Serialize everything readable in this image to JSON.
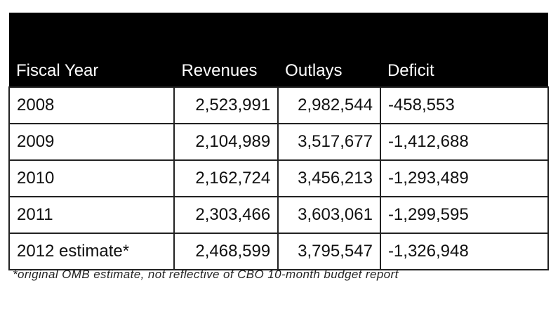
{
  "table": {
    "headers": [
      "Fiscal Year",
      "Revenues",
      "Outlays",
      "Deficit"
    ],
    "rows": [
      [
        "2008",
        "2,523,991",
        "2,982,544",
        "-458,553"
      ],
      [
        "2009",
        "2,104,989",
        "3,517,677",
        "-1,412,688"
      ],
      [
        "2010",
        "2,162,724",
        "3,456,213",
        "-1,293,489"
      ],
      [
        "2011",
        "2,303,466",
        "3,603,061",
        "-1,299,595"
      ],
      [
        "2012 estimate*",
        "2,468,599",
        "3,795,547",
        "-1,326,948"
      ]
    ]
  },
  "footnote": "*original OMB estimate, not reflective of CBO 10-month budget report",
  "colors": {
    "header_bg": "#000000",
    "header_text": "#ffffff",
    "border": "#222222"
  }
}
